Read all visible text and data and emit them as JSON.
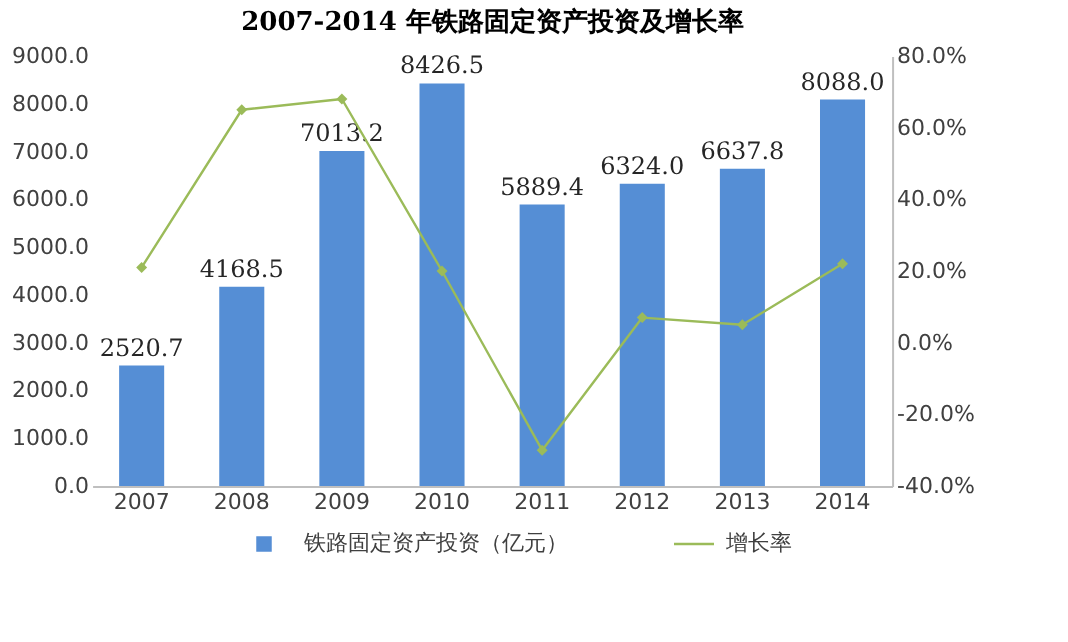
{
  "chart_data": {
    "type": "bar",
    "title": "2007-2014 年铁路固定资产投资及增长率",
    "categories": [
      "2007",
      "2008",
      "2009",
      "2010",
      "2011",
      "2012",
      "2013",
      "2014"
    ],
    "series": [
      {
        "name": "铁路固定资产投资（亿元）",
        "color": "#558ed5",
        "values": [
          2520.7,
          4168.5,
          7013.2,
          8426.5,
          5889.4,
          6324.0,
          6637.8,
          8088.0
        ],
        "value_labels": [
          "2520.7",
          "4168.5",
          "7013.2",
          "8426.5",
          "5889.4",
          "6324.0",
          "6637.8",
          "8088.0"
        ]
      },
      {
        "name": "增长率",
        "type": "line",
        "axis": "y2",
        "color": "#9bbb59",
        "marker": "diamond",
        "values": [
          21,
          65,
          68,
          20,
          -30,
          7,
          5,
          22
        ]
      }
    ],
    "ylim": [
      0,
      9000
    ],
    "yticks": [
      {
        "value": 0,
        "label": "0.0"
      },
      {
        "value": 1000,
        "label": "1000.0"
      },
      {
        "value": 2000,
        "label": "2000.0"
      },
      {
        "value": 3000,
        "label": "3000.0"
      },
      {
        "value": 4000,
        "label": "4000.0"
      },
      {
        "value": 5000,
        "label": "5000.0"
      },
      {
        "value": 6000,
        "label": "6000.0"
      },
      {
        "value": 7000,
        "label": "7000.0"
      },
      {
        "value": 8000,
        "label": "8000.0"
      },
      {
        "value": 9000,
        "label": "9000.0"
      }
    ],
    "y2lim": [
      -40,
      80
    ],
    "y2ticks": [
      {
        "value": -40,
        "label": "-40.0%"
      },
      {
        "value": -20,
        "label": "-20.0%"
      },
      {
        "value": 0,
        "label": "0.0%"
      },
      {
        "value": 20,
        "label": "20.0%"
      },
      {
        "value": 40,
        "label": "40.0%"
      },
      {
        "value": 60,
        "label": "60.0%"
      },
      {
        "value": 80,
        "label": "80.0%"
      }
    ],
    "grid": false,
    "legend": "bottom"
  }
}
